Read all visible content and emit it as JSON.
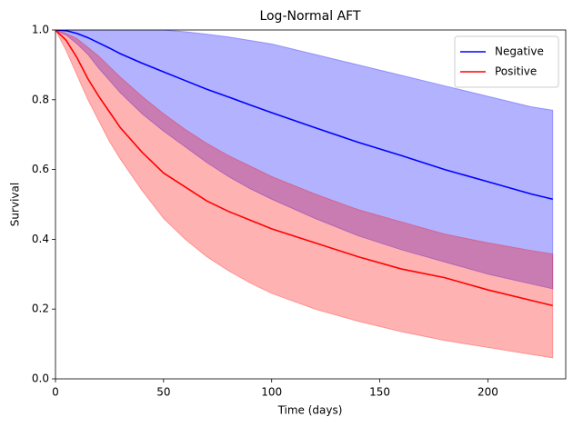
{
  "chart_data": {
    "type": "line",
    "title": "Log-Normal AFT",
    "xlabel": "Time (days)",
    "ylabel": "Survival",
    "x": [
      0,
      5,
      10,
      15,
      20,
      25,
      30,
      40,
      50,
      60,
      70,
      80,
      90,
      100,
      120,
      140,
      160,
      180,
      200,
      220,
      230
    ],
    "series": [
      {
        "name": "Negative",
        "color": "#0000ff",
        "values": [
          1,
          0.998,
          0.99,
          0.978,
          0.963,
          0.948,
          0.932,
          0.905,
          0.88,
          0.855,
          0.83,
          0.808,
          0.785,
          0.763,
          0.72,
          0.678,
          0.64,
          0.6,
          0.565,
          0.53,
          0.515
        ],
        "upper": [
          1,
          1,
          1,
          1,
          1,
          1,
          1,
          1,
          1,
          0.995,
          0.988,
          0.98,
          0.97,
          0.96,
          0.93,
          0.9,
          0.87,
          0.84,
          0.81,
          0.78,
          0.77
        ],
        "lower": [
          1,
          0.985,
          0.96,
          0.93,
          0.89,
          0.855,
          0.82,
          0.76,
          0.71,
          0.665,
          0.62,
          0.58,
          0.545,
          0.515,
          0.46,
          0.41,
          0.37,
          0.335,
          0.3,
          0.272,
          0.258
        ]
      },
      {
        "name": "Positive",
        "color": "#ff0000",
        "values": [
          1,
          0.97,
          0.92,
          0.86,
          0.81,
          0.765,
          0.72,
          0.65,
          0.59,
          0.55,
          0.51,
          0.48,
          0.455,
          0.43,
          0.39,
          0.35,
          0.315,
          0.29,
          0.255,
          0.225,
          0.21
        ],
        "upper": [
          1,
          0.99,
          0.975,
          0.95,
          0.925,
          0.895,
          0.865,
          0.81,
          0.76,
          0.715,
          0.675,
          0.64,
          0.61,
          0.58,
          0.53,
          0.485,
          0.45,
          0.415,
          0.39,
          0.368,
          0.358
        ],
        "lower": [
          1,
          0.94,
          0.87,
          0.8,
          0.74,
          0.68,
          0.63,
          0.54,
          0.46,
          0.4,
          0.35,
          0.31,
          0.275,
          0.245,
          0.2,
          0.165,
          0.135,
          0.11,
          0.09,
          0.07,
          0.06
        ]
      }
    ],
    "xlim": [
      0,
      236
    ],
    "xticks": [
      0,
      50,
      100,
      150,
      200
    ],
    "ylim": [
      0,
      1
    ],
    "yticks": [
      {
        "value": 0,
        "label": "0.0"
      },
      0.2,
      0.4,
      0.6,
      0.8,
      {
        "value": 1,
        "label": "1.0"
      }
    ],
    "grid": false,
    "legend": "upper right"
  }
}
